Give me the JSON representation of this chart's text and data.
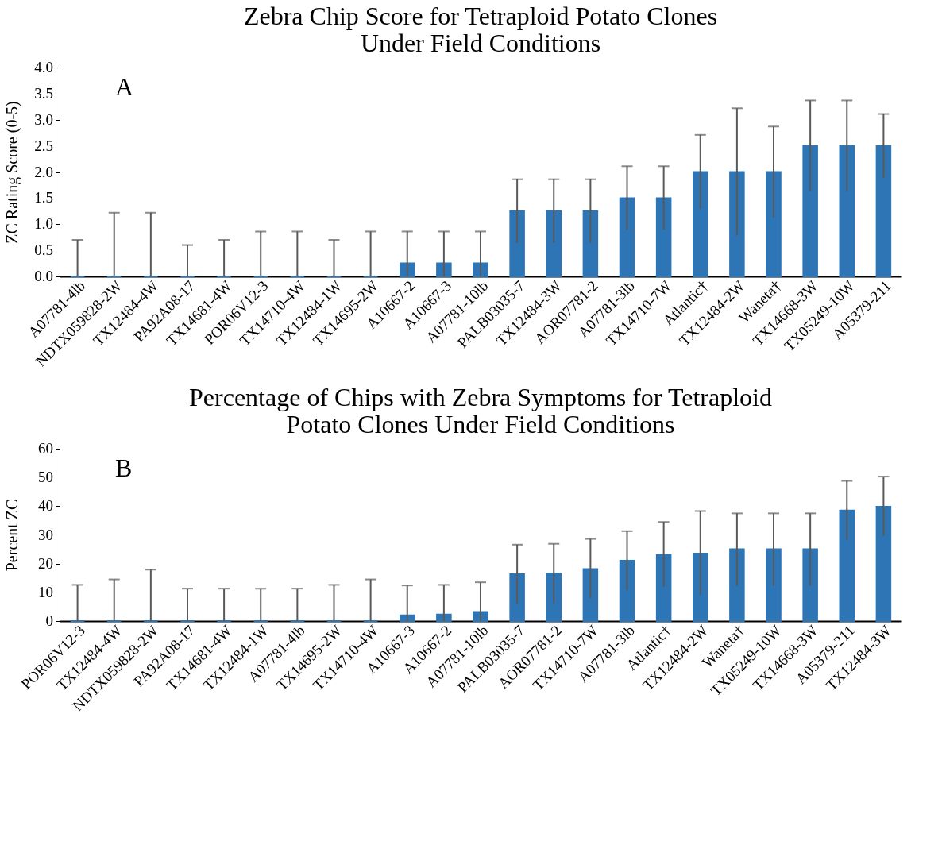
{
  "chart_data": [
    {
      "type": "bar",
      "title": "Zebra Chip Score for Tetraploid Potato Clones\nUnder Field Conditions",
      "ylabel": "ZC Rating Score (0-5)",
      "annotations": [
        "A"
      ],
      "categories": [
        "A07781-4lb",
        "NDTX059828-2W",
        "TX12484-4W",
        "PA92A08-17",
        "TX14681-4W",
        "POR06V12-3",
        "TX14710-4W",
        "TX12484-1W",
        "TX14695-2W",
        "A10667-2",
        "A10667-3",
        "A07781-10lb",
        "PALB03035-7",
        "TX12484-3W",
        "AOR07781-2",
        "A07781-3lb",
        "TX14710-7W",
        "Atlantic†",
        "TX12484-2W",
        "Waneta†",
        "TX14668-3W",
        "TX05249-10W",
        "A05379-211"
      ],
      "values": [
        0,
        0,
        0,
        0,
        0,
        0,
        0,
        0,
        0,
        0.25,
        0.25,
        0.25,
        1.25,
        1.25,
        1.25,
        1.5,
        1.5,
        2.0,
        2.0,
        2.0,
        2.5,
        2.5,
        2.5
      ],
      "errors": [
        [
          0,
          0.7
        ],
        [
          0,
          1.22
        ],
        [
          0,
          1.22
        ],
        [
          0,
          0.6
        ],
        [
          0,
          0.7
        ],
        [
          0,
          0.86
        ],
        [
          0,
          0.86
        ],
        [
          0,
          0.7
        ],
        [
          0,
          0.86
        ],
        [
          0,
          0.86
        ],
        [
          0,
          0.86
        ],
        [
          0,
          0.86
        ],
        [
          0.64,
          1.86
        ],
        [
          0.64,
          1.86
        ],
        [
          0.64,
          1.86
        ],
        [
          0.89,
          2.11
        ],
        [
          0.89,
          2.11
        ],
        [
          1.29,
          2.71
        ],
        [
          0.78,
          3.22
        ],
        [
          1.13,
          2.87
        ],
        [
          1.63,
          3.37
        ],
        [
          1.63,
          3.37
        ],
        [
          1.89,
          3.11
        ]
      ],
      "color": "#2e75b6",
      "ylim": [
        0,
        4
      ],
      "yticks": [
        {
          "value": 0,
          "label": "0.0"
        },
        0.5,
        {
          "value": 1,
          "label": "1.0"
        },
        1.5,
        {
          "value": 2,
          "label": "2.0"
        },
        2.5,
        {
          "value": 3,
          "label": "3.0"
        },
        3.5,
        {
          "value": 4,
          "label": "4.0"
        }
      ],
      "grid": false
    },
    {
      "type": "bar",
      "title": "Percentage of Chips with Zebra Symptoms for Tetraploid\nPotato Clones Under Field Conditions",
      "ylabel": "Percent ZC",
      "annotations": [
        "B"
      ],
      "categories": [
        "POR06V12-3",
        "TX12484-4W",
        "NDTX059828-2W",
        "PA92A08-17",
        "TX14681-4W",
        "TX12484-1W",
        "A07781-4lb",
        "TX14695-2W",
        "TX14710-4W",
        "A10667-3",
        "A10667-2",
        "A07781-10lb",
        "PALB03035-7",
        "AOR07781-2",
        "TX14710-7W",
        "A07781-3lb",
        "Atlantic†",
        "TX12484-2W",
        "Waneta†",
        "TX05249-10W",
        "TX14668-3W",
        "A05379-211",
        "TX12484-3W"
      ],
      "values": [
        0,
        0,
        0,
        0,
        0,
        0,
        0,
        0,
        0,
        2.0,
        2.3,
        3.2,
        16.3,
        16.5,
        18.1,
        21.0,
        23.1,
        23.5,
        25.0,
        25.0,
        25.0,
        38.5,
        39.8
      ],
      "errors": [
        [
          0,
          12.6
        ],
        [
          0,
          14.5
        ],
        [
          0,
          17.9
        ],
        [
          0,
          11.3
        ],
        [
          0,
          11.3
        ],
        [
          0,
          11.3
        ],
        [
          0,
          11.3
        ],
        [
          0,
          12.6
        ],
        [
          0,
          14.5
        ],
        [
          0,
          12.4
        ],
        [
          0,
          12.6
        ],
        [
          0,
          13.5
        ],
        [
          6.0,
          26.6
        ],
        [
          6.2,
          26.9
        ],
        [
          8.0,
          28.6
        ],
        [
          10.7,
          31.3
        ],
        [
          11.9,
          34.5
        ],
        [
          9.1,
          38.3
        ],
        [
          12.3,
          37.5
        ],
        [
          12.3,
          37.5
        ],
        [
          12.3,
          37.5
        ],
        [
          28.2,
          48.8
        ],
        [
          29.6,
          50.3
        ]
      ],
      "color": "#2e75b6",
      "ylim": [
        0,
        60
      ],
      "yticks": [
        0,
        10,
        20,
        30,
        40,
        50,
        60
      ],
      "grid": false
    }
  ]
}
